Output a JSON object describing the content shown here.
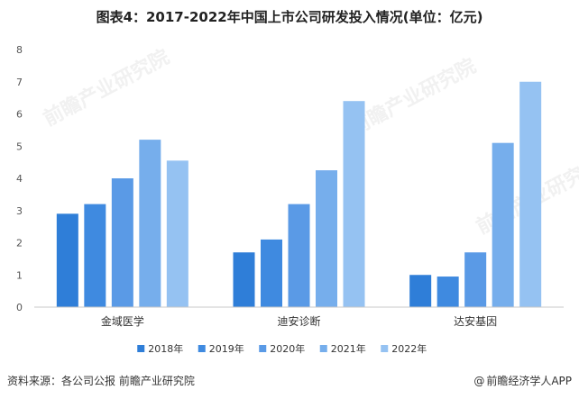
{
  "title": "图表4：2017-2022年中国上市公司研发投入情况(单位：亿元)",
  "chart_data": {
    "type": "bar",
    "categories": [
      "金域医学",
      "迪安诊断",
      "达安基因"
    ],
    "series": [
      {
        "name": "2018年",
        "values": [
          2.9,
          1.7,
          1.0
        ]
      },
      {
        "name": "2019年",
        "values": [
          3.2,
          2.1,
          0.95
        ]
      },
      {
        "name": "2020年",
        "values": [
          4.0,
          3.2,
          1.7
        ]
      },
      {
        "name": "2021年",
        "values": [
          5.2,
          4.25,
          5.1
        ]
      },
      {
        "name": "2022年",
        "values": [
          4.55,
          6.4,
          7.0
        ]
      }
    ],
    "ylim": [
      0,
      8
    ],
    "yticks": [
      0,
      1,
      2,
      3,
      4,
      5,
      6,
      7,
      8
    ],
    "colors": [
      "#2f7ed8",
      "#3f8ae0",
      "#5a9ae6",
      "#76aeec",
      "#95c2f2"
    ],
    "legend_position": "bottom",
    "grid": false
  },
  "watermark": "前瞻产业研究院",
  "footer": {
    "source": "资料来源：各公司公报 前瞻产业研究院",
    "brand_icon": "@",
    "brand": "前瞻经济学人APP"
  }
}
